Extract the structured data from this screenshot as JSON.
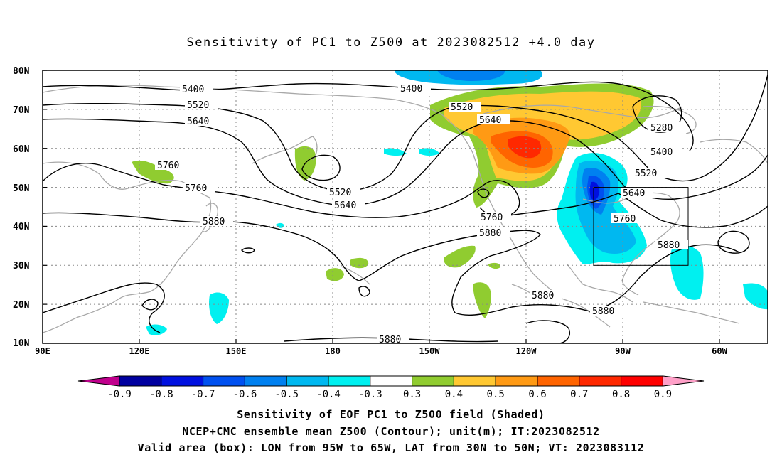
{
  "title": "Sensitivity of PC1 to Z500 at 2023082512 +4.0 day",
  "axes": {
    "lat_ticks": [
      "80N",
      "70N",
      "60N",
      "50N",
      "40N",
      "30N",
      "20N",
      "10N"
    ],
    "lon_ticks": [
      "90E",
      "120E",
      "150E",
      "180",
      "150W",
      "120W",
      "90W",
      "60W"
    ]
  },
  "contour_labels": [
    {
      "id": "c1",
      "text": "5400"
    },
    {
      "id": "c2",
      "text": "5520"
    },
    {
      "id": "c3",
      "text": "5640"
    },
    {
      "id": "c4",
      "text": "5760"
    },
    {
      "id": "c5",
      "text": "5760"
    },
    {
      "id": "c6",
      "text": "5880"
    },
    {
      "id": "c7",
      "text": "5400"
    },
    {
      "id": "c8",
      "text": "5520"
    },
    {
      "id": "c9",
      "text": "5640"
    },
    {
      "id": "c10",
      "text": "5520"
    },
    {
      "id": "c11",
      "text": "5640"
    },
    {
      "id": "c12",
      "text": "5760"
    },
    {
      "id": "c13",
      "text": "5880"
    },
    {
      "id": "c14",
      "text": "5280"
    },
    {
      "id": "c15",
      "text": "5400"
    },
    {
      "id": "c16",
      "text": "5520"
    },
    {
      "id": "c17",
      "text": "5640"
    },
    {
      "id": "c18",
      "text": "5760"
    },
    {
      "id": "c19",
      "text": "5880"
    },
    {
      "id": "c20",
      "text": "5880"
    },
    {
      "id": "c21",
      "text": "5880"
    },
    {
      "id": "c22",
      "text": "5880"
    }
  ],
  "valid_box": {
    "lon_from": "95W",
    "lon_to": "65W",
    "lat_from": "30N",
    "lat_to": "50N"
  },
  "colorbar": {
    "labels": [
      "-0.9",
      "-0.8",
      "-0.7",
      "-0.6",
      "-0.5",
      "-0.4",
      "-0.3",
      "0.3",
      "0.4",
      "0.5",
      "0.6",
      "0.7",
      "0.8",
      "0.9"
    ],
    "colors": [
      "#0000a0",
      "#0010e0",
      "#0050f0",
      "#0080f0",
      "#00b8f0",
      "#00f0f0",
      "#ffffff",
      "#90cc30",
      "#ffc832",
      "#ff9a14",
      "#ff6400",
      "#ff2800",
      "#ff0000"
    ],
    "low_end_color": "#c0008c",
    "high_end_color": "#ffa0c8"
  },
  "captions": [
    "Sensitivity of EOF PC1 to Z500 field (Shaded)",
    "NCEP+CMC ensemble mean Z500 (Contour); unit(m); IT:2023082512",
    "Valid area (box): LON from 95W to 65W, LAT from 30N to 50N; VT: 2023083112"
  ]
}
